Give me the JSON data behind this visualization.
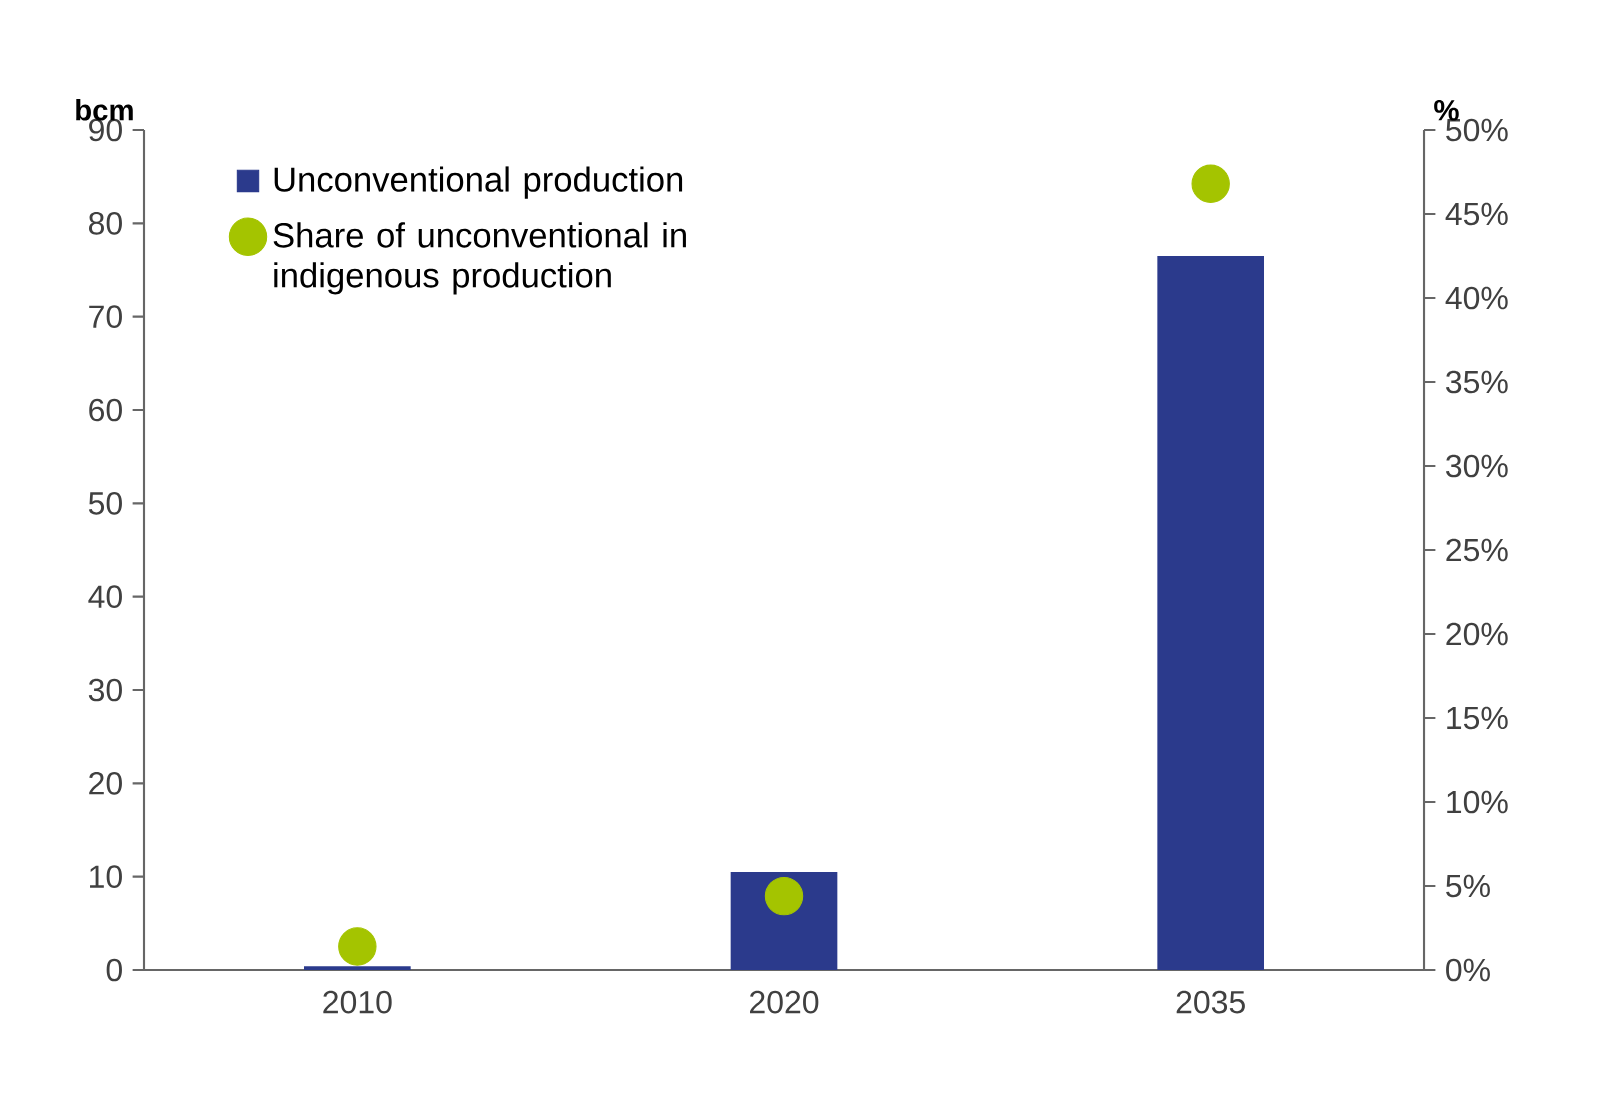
{
  "chart_data": {
    "type": "bar",
    "categories": [
      "2010",
      "2020",
      "2035"
    ],
    "ylabel": "bcm",
    "y2label": "%",
    "ylim": [
      0,
      90
    ],
    "yticks": [
      0,
      10,
      20,
      30,
      40,
      50,
      60,
      70,
      80,
      90
    ],
    "y2lim": [
      0,
      50
    ],
    "y2ticks": [
      {
        "value": 0,
        "label": "0%"
      },
      {
        "value": 5,
        "label": "5%"
      },
      {
        "value": 10,
        "label": "10%"
      },
      {
        "value": 15,
        "label": "15%"
      },
      {
        "value": 20,
        "label": "20%"
      },
      {
        "value": 25,
        "label": "25%"
      },
      {
        "value": 30,
        "label": "30%"
      },
      {
        "value": 35,
        "label": "35%"
      },
      {
        "value": 40,
        "label": "40%"
      },
      {
        "value": 45,
        "label": "45%"
      },
      {
        "value": 50,
        "label": "50%"
      }
    ],
    "legend": "top left",
    "series": [
      {
        "name": "Unconventional production",
        "color": "#2b3a8c",
        "values": [
          0.4,
          10.5,
          76.5
        ]
      },
      {
        "name": "Share of unconventional in indigenous production",
        "type": "scatter",
        "axis": "y2",
        "color": "#a4c400",
        "values": [
          1.4,
          4.4,
          46.8
        ]
      }
    ]
  }
}
